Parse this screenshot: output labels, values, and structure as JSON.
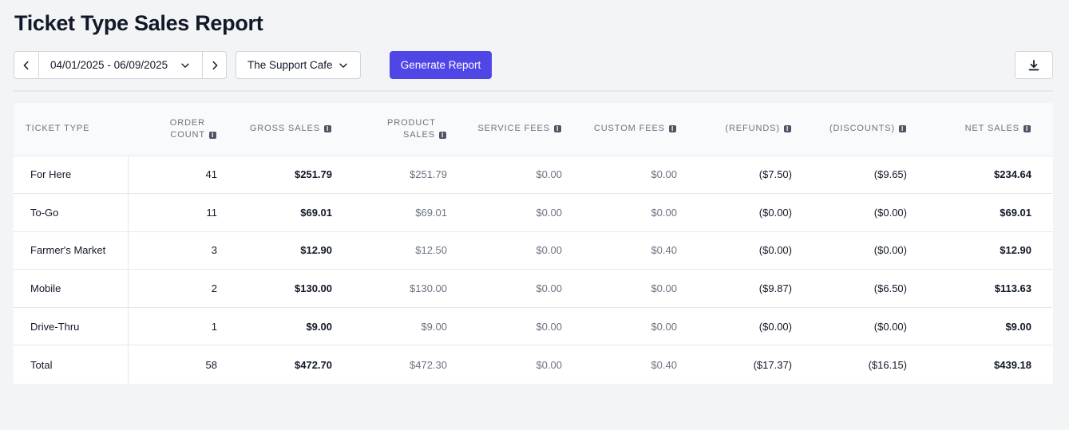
{
  "page": {
    "title": "Ticket Type Sales Report"
  },
  "toolbar": {
    "date_range": "04/01/2025 - 06/09/2025",
    "location": "The Support Cafe",
    "generate_label": "Generate Report"
  },
  "table": {
    "headers": {
      "ticket_type": "Ticket Type",
      "order_count": "Order Count",
      "gross_sales": "Gross Sales",
      "product_sales": "Product Sales",
      "service_fees": "Service Fees",
      "custom_fees": "Custom Fees",
      "refunds": "(Refunds)",
      "discounts": "(Discounts)",
      "net_sales": "Net Sales"
    },
    "rows": [
      {
        "ticket_type": "For Here",
        "order_count": "41",
        "gross_sales": "$251.79",
        "product_sales": "$251.79",
        "service_fees": "$0.00",
        "custom_fees": "$0.00",
        "refunds": "($7.50)",
        "discounts": "($9.65)",
        "net_sales": "$234.64"
      },
      {
        "ticket_type": "To-Go",
        "order_count": "11",
        "gross_sales": "$69.01",
        "product_sales": "$69.01",
        "service_fees": "$0.00",
        "custom_fees": "$0.00",
        "refunds": "($0.00)",
        "discounts": "($0.00)",
        "net_sales": "$69.01"
      },
      {
        "ticket_type": "Farmer's Market",
        "order_count": "3",
        "gross_sales": "$12.90",
        "product_sales": "$12.50",
        "service_fees": "$0.00",
        "custom_fees": "$0.40",
        "refunds": "($0.00)",
        "discounts": "($0.00)",
        "net_sales": "$12.90"
      },
      {
        "ticket_type": "Mobile",
        "order_count": "2",
        "gross_sales": "$130.00",
        "product_sales": "$130.00",
        "service_fees": "$0.00",
        "custom_fees": "$0.00",
        "refunds": "($9.87)",
        "discounts": "($6.50)",
        "net_sales": "$113.63"
      },
      {
        "ticket_type": "Drive-Thru",
        "order_count": "1",
        "gross_sales": "$9.00",
        "product_sales": "$9.00",
        "service_fees": "$0.00",
        "custom_fees": "$0.00",
        "refunds": "($0.00)",
        "discounts": "($0.00)",
        "net_sales": "$9.00"
      },
      {
        "ticket_type": "Total",
        "order_count": "58",
        "gross_sales": "$472.70",
        "product_sales": "$472.30",
        "service_fees": "$0.00",
        "custom_fees": "$0.40",
        "refunds": "($17.37)",
        "discounts": "($16.15)",
        "net_sales": "$439.18"
      }
    ]
  },
  "icons": {
    "prev": "chevron-left-icon",
    "next": "chevron-right-icon",
    "dropdown": "chevron-down-icon",
    "download": "download-icon",
    "info": "info-icon"
  },
  "colors": {
    "accent": "#4f46e5",
    "background": "#f3f4f6"
  }
}
